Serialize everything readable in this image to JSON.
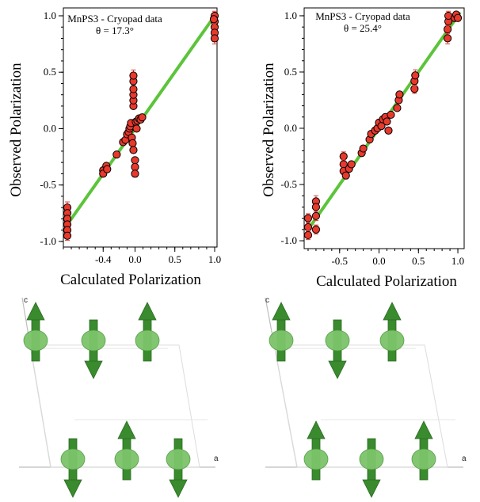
{
  "chart_data": [
    {
      "type": "scatter",
      "title": "MnPS3 - Cryopad data",
      "subtitle": "θ = 17.3°",
      "xlabel": "Calculated Polarization",
      "ylabel": "Observed Polarization",
      "xlim": [
        -0.9,
        1.03
      ],
      "ylim": [
        -1.05,
        1.07
      ],
      "x_ticks": [
        "-0.5",
        "0.0",
        "0.5",
        "1.0"
      ],
      "x_ticks_minor": [
        "-0.5",
        "-0.4",
        "-0.3",
        "-0.2",
        "-0.1",
        "0.0",
        "0.1",
        "0.2",
        "0.3",
        "0.4",
        "0.5",
        "0.6",
        "0.7",
        "0.8",
        "0.9",
        "1.0"
      ],
      "x_tick_labels": [
        {
          "value": -0.4,
          "label": "-0.4"
        },
        {
          "value": 0.0,
          "label": "0.0"
        },
        {
          "value": 0.5,
          "label": "0.5"
        },
        {
          "value": 1.0,
          "label": "1.0"
        }
      ],
      "y_tick_labels": [
        {
          "value": -1.0,
          "label": "-1.0"
        },
        {
          "value": -0.5,
          "label": "-0.5"
        },
        {
          "value": 0.0,
          "label": "0.0"
        },
        {
          "value": 0.5,
          "label": "0.5"
        },
        {
          "value": 1.0,
          "label": "1.0"
        }
      ],
      "reference_line": {
        "x": [
          -0.85,
          1.0
        ],
        "y": [
          -0.85,
          1.0
        ],
        "color": "#5cc43a"
      },
      "marker_color": "#e8392d",
      "errorbar_color": "#e8392d",
      "points": [
        {
          "x": -0.85,
          "y": -0.7,
          "err": 0.05
        },
        {
          "x": -0.85,
          "y": -0.75,
          "err": 0.04
        },
        {
          "x": -0.85,
          "y": -0.8,
          "err": 0.04
        },
        {
          "x": -0.85,
          "y": -0.85,
          "err": 0.04
        },
        {
          "x": -0.85,
          "y": -0.9,
          "err": 0.04
        },
        {
          "x": -0.85,
          "y": -0.95,
          "err": 0.04
        },
        {
          "x": -0.4,
          "y": -0.37,
          "err": 0.02
        },
        {
          "x": -0.4,
          "y": -0.4,
          "err": 0.02
        },
        {
          "x": -0.36,
          "y": -0.33,
          "err": 0.02
        },
        {
          "x": -0.35,
          "y": -0.36,
          "err": 0.02
        },
        {
          "x": -0.23,
          "y": -0.23,
          "err": 0.02
        },
        {
          "x": -0.15,
          "y": -0.12,
          "err": 0.02
        },
        {
          "x": -0.12,
          "y": -0.1,
          "err": 0.02
        },
        {
          "x": -0.1,
          "y": -0.05,
          "err": 0.02
        },
        {
          "x": -0.08,
          "y": -0.03,
          "err": 0.02
        },
        {
          "x": -0.07,
          "y": 0.0,
          "err": 0.02
        },
        {
          "x": -0.06,
          "y": 0.02,
          "err": 0.02
        },
        {
          "x": -0.05,
          "y": 0.05,
          "err": 0.02
        },
        {
          "x": -0.04,
          "y": -0.08,
          "err": 0.02
        },
        {
          "x": -0.03,
          "y": -0.13,
          "err": 0.02
        },
        {
          "x": -0.02,
          "y": -0.19,
          "err": 0.02
        },
        {
          "x": -0.02,
          "y": 0.2,
          "err": 0.02
        },
        {
          "x": -0.02,
          "y": 0.25,
          "err": 0.02
        },
        {
          "x": -0.02,
          "y": 0.3,
          "err": 0.02
        },
        {
          "x": -0.02,
          "y": 0.35,
          "err": 0.02
        },
        {
          "x": -0.02,
          "y": 0.42,
          "err": 0.03
        },
        {
          "x": -0.02,
          "y": 0.47,
          "err": 0.05
        },
        {
          "x": 0.0,
          "y": -0.28,
          "err": 0.02
        },
        {
          "x": 0.0,
          "y": -0.34,
          "err": 0.02
        },
        {
          "x": 0.0,
          "y": -0.4,
          "err": 0.03
        },
        {
          "x": 0.01,
          "y": 0.06,
          "err": 0.02
        },
        {
          "x": 0.02,
          "y": 0.0,
          "err": 0.02
        },
        {
          "x": 0.03,
          "y": 0.07,
          "err": 0.02
        },
        {
          "x": 0.05,
          "y": 0.09,
          "err": 0.02
        },
        {
          "x": 0.07,
          "y": 0.08,
          "err": 0.02
        },
        {
          "x": 0.09,
          "y": 0.1,
          "err": 0.02
        },
        {
          "x": 1.0,
          "y": 1.0,
          "err": 0.04
        },
        {
          "x": 1.0,
          "y": 0.95,
          "err": 0.04
        },
        {
          "x": 1.0,
          "y": 0.9,
          "err": 0.04
        },
        {
          "x": 1.0,
          "y": 0.85,
          "err": 0.04
        },
        {
          "x": 1.0,
          "y": 0.8,
          "err": 0.05
        },
        {
          "x": 0.99,
          "y": 0.97,
          "err": 0.04
        }
      ]
    },
    {
      "type": "scatter",
      "title": "MnPS3 - Cryopad data",
      "subtitle": "θ = 25.4°",
      "xlabel": "Calculated Polarization",
      "ylabel": "Observed Polarization",
      "xlim": [
        -0.95,
        1.08
      ],
      "ylim": [
        -1.07,
        1.07
      ],
      "x_tick_labels": [
        {
          "value": -0.5,
          "label": "-0.5"
        },
        {
          "value": 0.0,
          "label": "0.0"
        },
        {
          "value": 0.5,
          "label": "0.5"
        },
        {
          "value": 1.0,
          "label": "1.0"
        }
      ],
      "y_tick_labels": [
        {
          "value": -1.0,
          "label": "-1.0"
        },
        {
          "value": -0.5,
          "label": "-0.5"
        },
        {
          "value": 0.0,
          "label": "0.0"
        },
        {
          "value": 0.5,
          "label": "0.5"
        },
        {
          "value": 1.0,
          "label": "1.0"
        }
      ],
      "reference_line": {
        "x": [
          -0.9,
          1.02
        ],
        "y": [
          -0.9,
          1.02
        ],
        "color": "#5cc43a"
      },
      "marker_color": "#e8392d",
      "errorbar_color": "#e8392d",
      "points": [
        {
          "x": -0.9,
          "y": -0.8,
          "err": 0.04
        },
        {
          "x": -0.9,
          "y": -0.88,
          "err": 0.04
        },
        {
          "x": -0.9,
          "y": -0.95,
          "err": 0.04
        },
        {
          "x": -0.8,
          "y": -0.65,
          "err": 0.05
        },
        {
          "x": -0.8,
          "y": -0.7,
          "err": 0.04
        },
        {
          "x": -0.8,
          "y": -0.78,
          "err": 0.04
        },
        {
          "x": -0.8,
          "y": -0.9,
          "err": 0.04
        },
        {
          "x": -0.45,
          "y": -0.25,
          "err": 0.04
        },
        {
          "x": -0.45,
          "y": -0.32,
          "err": 0.04
        },
        {
          "x": -0.45,
          "y": -0.38,
          "err": 0.03
        },
        {
          "x": -0.42,
          "y": -0.42,
          "err": 0.03
        },
        {
          "x": -0.38,
          "y": -0.36,
          "err": 0.02
        },
        {
          "x": -0.35,
          "y": -0.32,
          "err": 0.02
        },
        {
          "x": -0.22,
          "y": -0.22,
          "err": 0.02
        },
        {
          "x": -0.2,
          "y": -0.18,
          "err": 0.02
        },
        {
          "x": -0.12,
          "y": -0.1,
          "err": 0.02
        },
        {
          "x": -0.1,
          "y": -0.05,
          "err": 0.02
        },
        {
          "x": -0.05,
          "y": -0.02,
          "err": 0.02
        },
        {
          "x": -0.02,
          "y": 0.0,
          "err": 0.02
        },
        {
          "x": 0.0,
          "y": 0.05,
          "err": 0.02
        },
        {
          "x": 0.03,
          "y": 0.02,
          "err": 0.02
        },
        {
          "x": 0.05,
          "y": 0.08,
          "err": 0.02
        },
        {
          "x": 0.08,
          "y": 0.1,
          "err": 0.02
        },
        {
          "x": 0.1,
          "y": 0.06,
          "err": 0.02
        },
        {
          "x": 0.12,
          "y": -0.02,
          "err": 0.02
        },
        {
          "x": 0.15,
          "y": 0.12,
          "err": 0.02
        },
        {
          "x": 0.23,
          "y": 0.18,
          "err": 0.02
        },
        {
          "x": 0.25,
          "y": 0.25,
          "err": 0.02
        },
        {
          "x": 0.26,
          "y": 0.3,
          "err": 0.02
        },
        {
          "x": 0.45,
          "y": 0.35,
          "err": 0.04
        },
        {
          "x": 0.45,
          "y": 0.42,
          "err": 0.04
        },
        {
          "x": 0.46,
          "y": 0.47,
          "err": 0.05
        },
        {
          "x": 0.87,
          "y": 0.8,
          "err": 0.05
        },
        {
          "x": 0.87,
          "y": 0.88,
          "err": 0.04
        },
        {
          "x": 0.88,
          "y": 0.95,
          "err": 0.04
        },
        {
          "x": 0.88,
          "y": 1.0,
          "err": 0.04
        },
        {
          "x": 0.96,
          "y": 0.98,
          "err": 0.02
        },
        {
          "x": 0.98,
          "y": 1.01,
          "err": 0.02
        },
        {
          "x": 1.0,
          "y": 0.98,
          "err": 0.02
        }
      ]
    }
  ],
  "structures": [
    {
      "axis_c_label": "c",
      "axis_a_label": "a",
      "spin_color": "#3a8a2e"
    },
    {
      "axis_c_label": "c",
      "axis_a_label": "a",
      "spin_color": "#3a8a2e"
    }
  ]
}
